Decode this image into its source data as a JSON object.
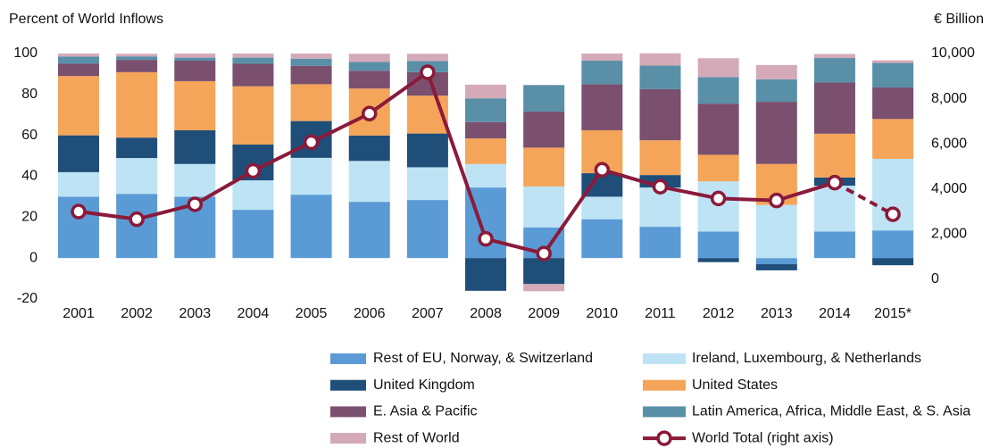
{
  "chart_data": {
    "type": "bar",
    "stacked": true,
    "y_label": "Percent of World Inflows",
    "y2_label": "€ Billion",
    "categories": [
      "2001",
      "2002",
      "2003",
      "2004",
      "2005",
      "2006",
      "2007",
      "2008",
      "2009",
      "2010",
      "2011",
      "2012",
      "2013",
      "2014",
      "2015*"
    ],
    "ylim": [
      -20,
      100
    ],
    "yticks": [
      -20,
      0,
      20,
      40,
      60,
      80,
      100
    ],
    "y2lim": [
      -873,
      10000
    ],
    "y2ticks": [
      0,
      {
        "value": 2000,
        "label": "2,000"
      },
      {
        "value": 4000,
        "label": "4,000"
      },
      {
        "value": 6000,
        "label": "6,000"
      },
      {
        "value": 8000,
        "label": "8,000"
      },
      {
        "value": 10000,
        "label": "10,000"
      }
    ],
    "series": [
      {
        "name": "Rest of EU, Norway, & Switzerland",
        "color": "#5b9bd5",
        "values": [
          30,
          31.4,
          30,
          23.6,
          31,
          27.5,
          28.4,
          34.5,
          15,
          19,
          15.3,
          13,
          -3,
          13,
          13.5
        ]
      },
      {
        "name": "Ireland, Luxembourg, & Netherlands",
        "color": "#bde3f5",
        "values": [
          12,
          17.5,
          16,
          14.4,
          18,
          20,
          16,
          11.5,
          20,
          11,
          19.2,
          24.5,
          26,
          22.4,
          35
        ]
      },
      {
        "name": "United Kingdom",
        "color": "#1f4e79",
        "values": [
          18,
          10,
          16.5,
          17.5,
          18,
          12.4,
          16.5,
          -16,
          -12.7,
          11.5,
          6.1,
          -2,
          -3,
          4,
          -3.5
        ]
      },
      {
        "name": "United States",
        "color": "#f4a55a",
        "values": [
          29,
          32,
          24,
          28.5,
          18,
          23,
          18.5,
          12.5,
          19,
          21,
          17,
          13,
          20,
          21.4,
          19.5
        ]
      },
      {
        "name": "E. Asia & Pacific",
        "color": "#7b4f6e",
        "values": [
          6,
          6,
          10,
          11,
          9,
          8.7,
          11.5,
          8,
          17.6,
          22.5,
          25,
          25,
          30.4,
          25,
          15.4
        ]
      },
      {
        "name": "Latin America, Africa, Middle East, & S. Asia",
        "color": "#5a8fa8",
        "values": [
          3.5,
          1.7,
          1.5,
          3,
          3.5,
          4.3,
          5.5,
          11.6,
          13,
          11.5,
          11.5,
          13,
          11,
          12,
          12
        ]
      },
      {
        "name": "Rest of World",
        "color": "#d4aab8",
        "values": [
          1.5,
          1.3,
          2,
          2,
          2.5,
          4,
          3.5,
          6.7,
          -3.5,
          3.5,
          6,
          9.2,
          7,
          2,
          1.3
        ]
      },
      {
        "name": "World Total (right axis)",
        "type": "line",
        "axis": "y2",
        "color": "#8b1a3a",
        "dashed_last_segment": true,
        "values": [
          3000,
          2660,
          3320,
          4800,
          6070,
          7340,
          9170,
          1790,
          1140,
          4850,
          4100,
          3580,
          3490,
          4280,
          2880
        ]
      }
    ]
  }
}
